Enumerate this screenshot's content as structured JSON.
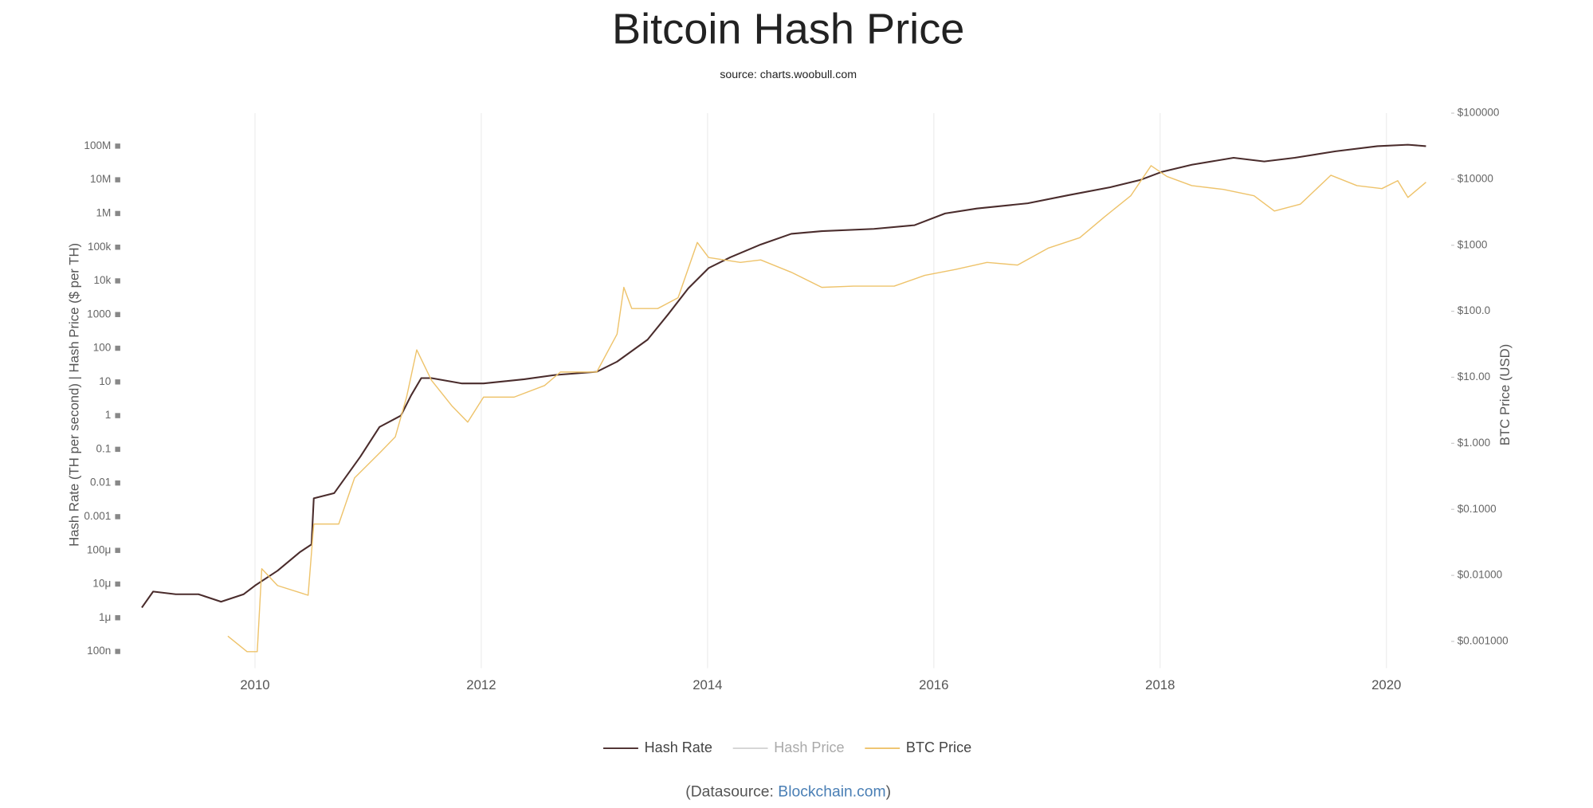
{
  "chart_data": {
    "type": "line",
    "title": "Bitcoin Hash Price",
    "subtitle": "source: charts.woobull.com",
    "y_label": "Hash Rate (TH per second) | Hash Price ($ per TH)",
    "y2_label": "BTC Price (USD)",
    "log_y": true,
    "log_y2": true,
    "grid_x": true,
    "legend": "bottom",
    "xlim": [
      2008.9,
      2020.5
    ],
    "xticks": [
      2010,
      2012,
      2014,
      2016,
      2018,
      2020
    ],
    "ylim": [
      3.2e-08,
      950000000.0
    ],
    "yticks": [
      {
        "value": 1e-07,
        "label": "100n"
      },
      {
        "value": 1e-06,
        "label": "1μ"
      },
      {
        "value": 1e-05,
        "label": "10μ"
      },
      {
        "value": 0.0001,
        "label": "100μ"
      },
      0.001,
      0.01,
      0.1,
      1,
      10,
      100,
      1000,
      {
        "value": 10000,
        "label": "10k"
      },
      {
        "value": 100000,
        "label": "100k"
      },
      {
        "value": 1000000,
        "label": "1M"
      },
      {
        "value": 10000000,
        "label": "10M"
      },
      {
        "value": 100000000,
        "label": "100M"
      }
    ],
    "y2lim": [
      0.000394,
      100000
    ],
    "y2ticks": [
      {
        "value": 0.001,
        "label": "$0.001000"
      },
      {
        "value": 0.01,
        "label": "$0.01000"
      },
      {
        "value": 0.1,
        "label": "$0.1000"
      },
      {
        "value": 1,
        "label": "$1.000"
      },
      {
        "value": 10,
        "label": "$10.00"
      },
      {
        "value": 100,
        "label": "$100.0"
      },
      {
        "value": 1000,
        "label": "$1000"
      },
      {
        "value": 10000,
        "label": "$10000"
      },
      {
        "value": 100000,
        "label": "$100000"
      }
    ],
    "series": [
      {
        "name": "Hash Rate",
        "color": "#4a2c2c",
        "visible": true,
        "x": [
          2009.0,
          2009.1,
          2009.3,
          2009.5,
          2009.7,
          2009.9,
          2010.0,
          2010.2,
          2010.4,
          2010.5,
          2010.52,
          2010.7,
          2010.93,
          2011.1,
          2011.29,
          2011.38,
          2011.47,
          2011.56,
          2011.83,
          2012.02,
          2012.38,
          2012.65,
          2013.02,
          2013.2,
          2013.47,
          2013.65,
          2013.83,
          2014.01,
          2014.2,
          2014.47,
          2014.74,
          2015.01,
          2015.47,
          2015.83,
          2016.1,
          2016.38,
          2016.83,
          2017.19,
          2017.56,
          2017.83,
          2018.01,
          2018.28,
          2018.65,
          2018.92,
          2019.19,
          2019.55,
          2019.92,
          2020.19,
          2020.35
        ],
        "values": [
          2e-06,
          6e-06,
          5e-06,
          5e-06,
          3e-06,
          5e-06,
          9e-06,
          2.5e-05,
          9e-05,
          0.00015,
          0.0035,
          0.005,
          0.06,
          0.46,
          1,
          4,
          13,
          13,
          9,
          9,
          12,
          16,
          20,
          40,
          180,
          1000,
          6000,
          24000,
          50000,
          120000,
          250000,
          300000,
          350000,
          450000,
          1000000,
          1400000,
          2000000,
          3500000,
          6000000,
          10000000,
          17000000,
          28000000,
          45000000,
          35000000,
          45000000,
          70000000,
          100000000,
          110000000,
          100000000
        ]
      },
      {
        "name": "Hash Price",
        "color": "#aaaaaa",
        "visible": false
      },
      {
        "name": "BTC Price",
        "color": "#eec36b",
        "visible": true,
        "axis": "y2",
        "x": [
          2009.76,
          2009.93,
          2010.02,
          2010.06,
          2010.2,
          2010.47,
          2010.52,
          2010.74,
          2010.88,
          2011.11,
          2011.24,
          2011.34,
          2011.43,
          2011.56,
          2011.74,
          2011.88,
          2012.02,
          2012.29,
          2012.56,
          2012.7,
          2013.02,
          2013.2,
          2013.26,
          2013.33,
          2013.56,
          2013.74,
          2013.91,
          2014.01,
          2014.29,
          2014.47,
          2014.74,
          2015.01,
          2015.29,
          2015.65,
          2015.92,
          2016.19,
          2016.47,
          2016.74,
          2017.01,
          2017.29,
          2017.51,
          2017.74,
          2017.92,
          2018.06,
          2018.28,
          2018.56,
          2018.83,
          2019.01,
          2019.24,
          2019.51,
          2019.74,
          2019.96,
          2020.1,
          2020.19,
          2020.35
        ],
        "values": [
          0.0012,
          0.0007,
          0.0007,
          0.0126,
          0.007,
          0.005,
          0.06,
          0.06,
          0.3,
          0.74,
          1.25,
          5,
          26,
          9,
          3.7,
          2.1,
          5,
          5,
          7.5,
          12,
          12,
          45,
          230,
          110,
          110,
          160,
          1100,
          650,
          550,
          600,
          390,
          230,
          240,
          240,
          350,
          430,
          550,
          500,
          900,
          1300,
          2700,
          5600,
          16000,
          11000,
          8000,
          7000,
          5600,
          3300,
          4200,
          11500,
          8000,
          7200,
          9500,
          5300,
          9000
        ]
      }
    ]
  },
  "footer": {
    "prefix": "(Datasource: ",
    "link": "Blockchain.com",
    "suffix": ")"
  }
}
